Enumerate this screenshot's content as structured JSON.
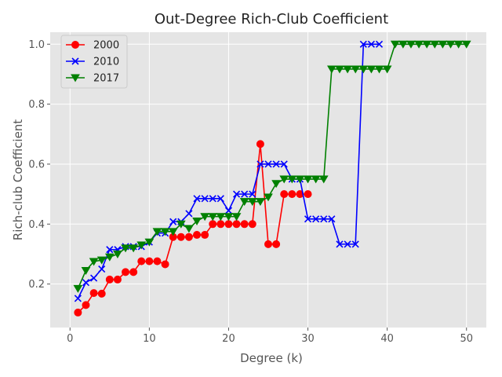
{
  "chart_data": {
    "type": "line",
    "title": "Out-Degree Rich-Club Coefficient",
    "xlabel": "Degree (k)",
    "ylabel": "Rich-club Coefficient",
    "xlim": [
      -2.5,
      52.5
    ],
    "ylim": [
      0.055,
      1.04
    ],
    "xticks": [
      0,
      10,
      20,
      30,
      40,
      50
    ],
    "yticks": [
      0.2,
      0.4,
      0.6,
      0.8,
      1.0
    ],
    "xtick_labels": [
      "0",
      "10",
      "20",
      "30",
      "40",
      "50"
    ],
    "ytick_labels": [
      "0.2",
      "0.4",
      "0.6",
      "0.8",
      "1.0"
    ],
    "grid": true,
    "legend_position": "top-left",
    "series": [
      {
        "name": "2000",
        "color": "#ff0000",
        "marker": "circle",
        "x": [
          1,
          2,
          3,
          4,
          5,
          6,
          7,
          8,
          9,
          10,
          11,
          12,
          13,
          14,
          15,
          16,
          17,
          18,
          19,
          20,
          21,
          22,
          23,
          24,
          25,
          26,
          27,
          28,
          29,
          30
        ],
        "y": [
          0.105,
          0.13,
          0.17,
          0.168,
          0.215,
          0.215,
          0.24,
          0.24,
          0.276,
          0.276,
          0.276,
          0.266,
          0.357,
          0.357,
          0.357,
          0.364,
          0.364,
          0.4,
          0.4,
          0.4,
          0.4,
          0.4,
          0.4,
          0.667,
          0.333,
          0.333,
          0.5,
          0.5,
          0.5,
          0.5
        ]
      },
      {
        "name": "2010",
        "color": "#0000ff",
        "marker": "x",
        "x": [
          1,
          2,
          3,
          4,
          5,
          6,
          7,
          8,
          9,
          10,
          11,
          12,
          13,
          14,
          15,
          16,
          17,
          18,
          19,
          20,
          21,
          22,
          23,
          24,
          25,
          26,
          27,
          28,
          29,
          30,
          31,
          32,
          33,
          34,
          35,
          36,
          37,
          38,
          39
        ],
        "y": [
          0.152,
          0.205,
          0.22,
          0.25,
          0.315,
          0.315,
          0.325,
          0.325,
          0.325,
          0.34,
          0.37,
          0.37,
          0.408,
          0.408,
          0.435,
          0.485,
          0.485,
          0.485,
          0.485,
          0.445,
          0.5,
          0.5,
          0.5,
          0.6,
          0.6,
          0.6,
          0.6,
          0.55,
          0.55,
          0.417,
          0.417,
          0.417,
          0.417,
          0.333,
          0.333,
          0.333,
          1.0,
          1.0,
          1.0
        ]
      },
      {
        "name": "2017",
        "color": "#008000",
        "marker": "triangle-down",
        "x": [
          1,
          2,
          3,
          4,
          5,
          6,
          7,
          8,
          9,
          10,
          11,
          12,
          13,
          14,
          15,
          16,
          17,
          18,
          19,
          20,
          21,
          22,
          23,
          24,
          25,
          26,
          27,
          28,
          29,
          30,
          31,
          32,
          33,
          34,
          35,
          36,
          37,
          38,
          39,
          40,
          41,
          42,
          43,
          44,
          45,
          46,
          47,
          48,
          49,
          50
        ],
        "y": [
          0.185,
          0.245,
          0.275,
          0.28,
          0.29,
          0.3,
          0.32,
          0.32,
          0.33,
          0.34,
          0.375,
          0.375,
          0.375,
          0.4,
          0.385,
          0.41,
          0.425,
          0.425,
          0.425,
          0.425,
          0.425,
          0.475,
          0.475,
          0.475,
          0.49,
          0.535,
          0.55,
          0.55,
          0.55,
          0.55,
          0.55,
          0.55,
          0.917,
          0.917,
          0.917,
          0.917,
          0.917,
          0.917,
          0.917,
          0.917,
          1.0,
          1.0,
          1.0,
          1.0,
          1.0,
          1.0,
          1.0,
          1.0,
          1.0,
          1.0
        ]
      }
    ]
  }
}
